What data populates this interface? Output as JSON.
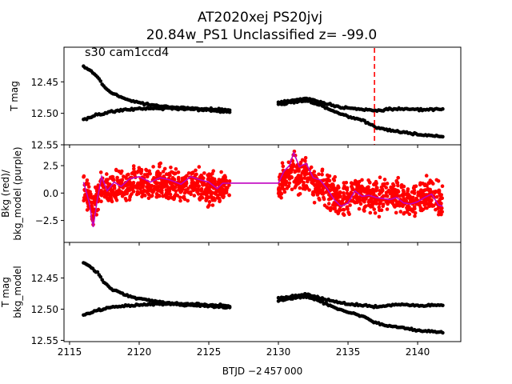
{
  "figure": {
    "title_line1": "AT2020xej  PS20jvj",
    "title_line2": "20.84w_PS1 Unclassified z= -99.0",
    "xlabel": "BTJD −2 457 000"
  },
  "chart_data": [
    {
      "type": "scatter",
      "panel": "top",
      "ylabel": "T mag",
      "annotation": "s30 cam1ccd4",
      "y_inverted": true,
      "xlim": [
        2114.6,
        2143.1
      ],
      "ylim": [
        12.55,
        12.395
      ],
      "xticks": [
        2115,
        2120,
        2125,
        2130,
        2135,
        2140
      ],
      "yticks": [
        12.45,
        12.5,
        12.55
      ],
      "ytick_labels": [
        "12.45",
        "12.50",
        "12.55"
      ],
      "vline": {
        "x": 2136.9,
        "color": "#ff0000",
        "style": "dashed"
      },
      "point_color": "#000000",
      "series": [
        {
          "x_start": 2116.0,
          "x_end": 2126.5,
          "segments": [
            {
              "x": [
                2116.0,
                2116.5,
                2117.0,
                2117.5,
                2118.0,
                2119.0,
                2120.0,
                2121.0,
                2122.0,
                2123.0,
                2124.0,
                2125.0,
                2126.5
              ],
              "y": [
                12.425,
                12.432,
                12.442,
                12.458,
                12.468,
                12.477,
                12.483,
                12.487,
                12.49,
                12.491,
                12.492,
                12.493,
                12.495
              ]
            },
            {
              "x": [
                2116.0,
                2116.5,
                2117.0,
                2117.5,
                2118.0,
                2119.0,
                2120.0,
                2121.0,
                2122.0,
                2123.0,
                2124.0,
                2125.0,
                2126.5
              ],
              "y": [
                12.51,
                12.506,
                12.502,
                12.5,
                12.497,
                12.495,
                12.493,
                12.492,
                12.492,
                12.493,
                12.494,
                12.495,
                12.498
              ]
            }
          ]
        },
        {
          "x_start": 2130.0,
          "x_end": 2141.8,
          "segments": [
            {
              "x": [
                2130.0,
                2131.0,
                2132.0,
                2133.0,
                2134.0,
                2135.0,
                2136.0,
                2137.0,
                2138.0,
                2139.0,
                2140.0,
                2141.8
              ],
              "y": [
                12.483,
                12.479,
                12.476,
                12.482,
                12.488,
                12.492,
                12.494,
                12.496,
                12.494,
                12.493,
                12.494,
                12.494
              ]
            },
            {
              "x": [
                2130.0,
                2131.0,
                2132.0,
                2133.0,
                2134.0,
                2135.0,
                2136.0,
                2137.0,
                2138.0,
                2139.0,
                2140.0,
                2141.8
              ],
              "y": [
                12.486,
                12.482,
                12.48,
                12.487,
                12.497,
                12.505,
                12.511,
                12.522,
                12.527,
                12.53,
                12.534,
                12.537
              ]
            }
          ]
        }
      ]
    },
    {
      "type": "scatter",
      "panel": "middle",
      "ylabel_line1": "Bkg (red)/",
      "ylabel_line2": "bkg_model (purple)",
      "xlim": [
        2114.6,
        2143.1
      ],
      "ylim": [
        -4.5,
        4.4
      ],
      "yticks": [
        -2.5,
        0.0,
        2.5
      ],
      "ytick_labels": [
        "−2.5",
        "0.0",
        "2.5"
      ],
      "points_color": "#ff0000",
      "model_color": "#c000c0",
      "model_line": {
        "x": [
          2116.0,
          2116.4,
          2116.7,
          2117.0,
          2117.3,
          2117.7,
          2118.2,
          2118.7,
          2119.3,
          2120.0,
          2120.8,
          2121.5,
          2122.2,
          2123.0,
          2123.7,
          2124.4,
          2125.0,
          2125.6,
          2126.0,
          2126.5,
          2130.0,
          2130.4,
          2130.8,
          2131.1,
          2131.5,
          2132.0,
          2132.5,
          2133.0,
          2133.5,
          2134.0,
          2134.5,
          2135.0,
          2135.5,
          2136.0,
          2136.5,
          2137.0,
          2137.5,
          2138.0,
          2138.5,
          2139.0,
          2139.5,
          2140.0,
          2140.5,
          2141.0,
          2141.5,
          2141.8
        ],
        "y": [
          1.0,
          -0.8,
          -3.1,
          -0.5,
          1.5,
          0.2,
          1.0,
          0.6,
          1.3,
          1.5,
          1.0,
          1.4,
          1.2,
          0.8,
          1.5,
          1.2,
          1.0,
          0.4,
          0.9,
          0.9,
          0.9,
          2.0,
          2.5,
          3.7,
          2.4,
          2.7,
          1.4,
          1.2,
          0.4,
          -0.6,
          -1.2,
          -0.9,
          0.2,
          -0.3,
          -0.2,
          -0.4,
          -0.5,
          -0.6,
          -0.4,
          -0.9,
          -1.0,
          -0.8,
          -0.4,
          -0.1,
          -1.1,
          -1.2
        ]
      },
      "gap_line": {
        "x": [
          2126.5,
          2130.0
        ],
        "y": [
          0.9,
          0.9
        ]
      }
    },
    {
      "type": "scatter",
      "panel": "bottom",
      "ylabel_line1": "T mag",
      "ylabel_line2": "bkg_model",
      "y_inverted": true,
      "xlim": [
        2114.6,
        2143.1
      ],
      "ylim": [
        12.552,
        12.393
      ],
      "yticks": [
        12.45,
        12.5,
        12.55
      ],
      "ytick_labels": [
        "12.45",
        "12.50",
        "12.55"
      ],
      "xtick_labels": [
        "2115",
        "2120",
        "2125",
        "2130",
        "2135",
        "2140"
      ],
      "point_color": "#000000"
    }
  ]
}
